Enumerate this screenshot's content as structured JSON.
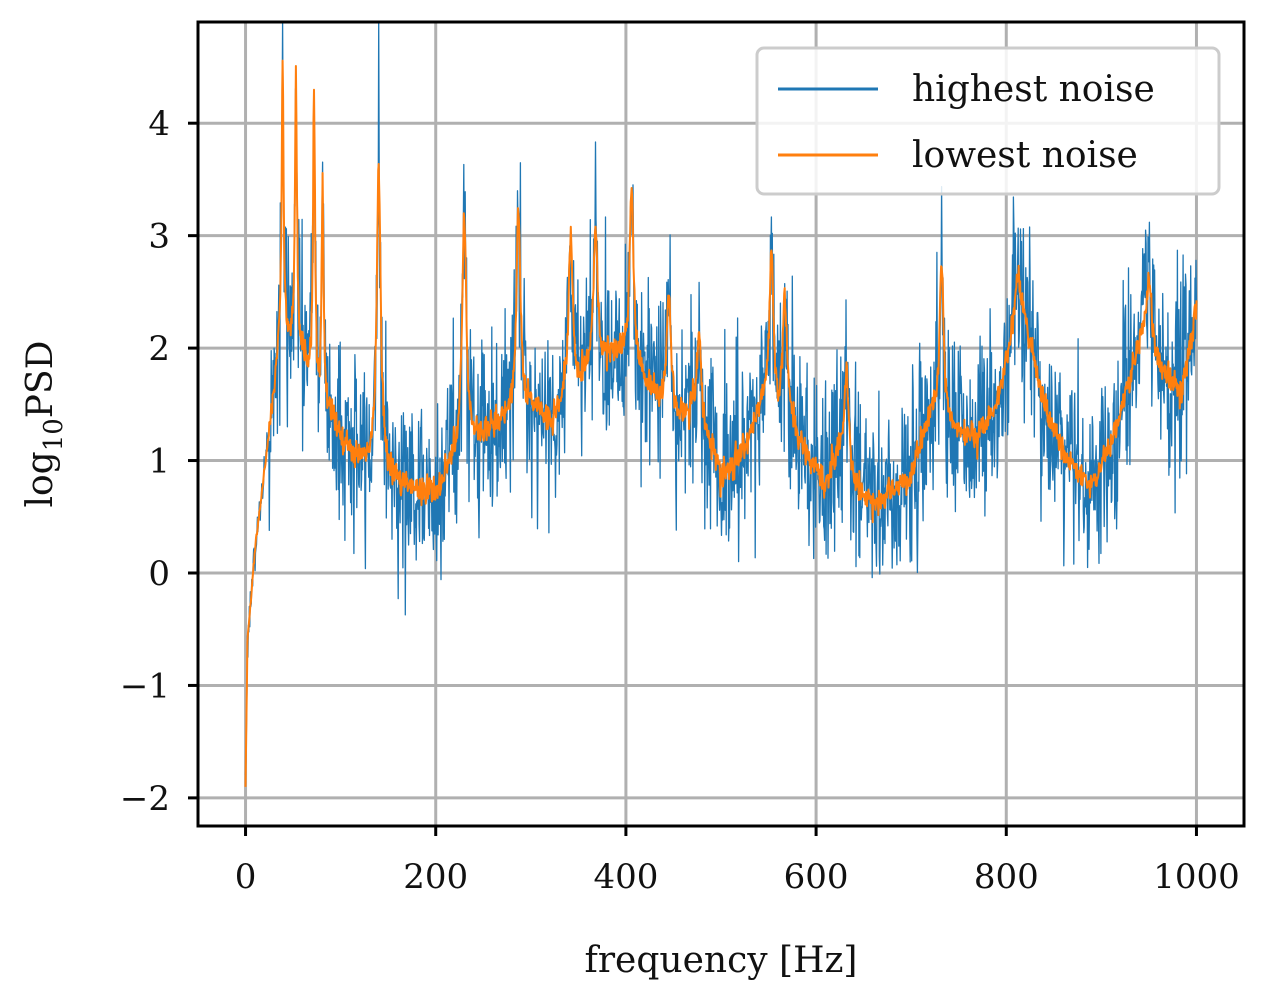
{
  "chart_data": {
    "type": "line",
    "xlabel": "frequency [Hz]",
    "ylabel_base": "log",
    "ylabel_sub": "10",
    "ylabel_rest": "PSD",
    "xlim": [
      -50,
      1050
    ],
    "ylim": [
      -2.25,
      4.9
    ],
    "x_ticks": [
      0,
      200,
      400,
      600,
      800,
      1000
    ],
    "y_ticks": [
      -2,
      -1,
      0,
      1,
      2,
      3,
      4
    ],
    "y_tick_labels": [
      "−2",
      "−1",
      "0",
      "1",
      "2",
      "3",
      "4"
    ],
    "grid": true,
    "legend_position": "top-right",
    "series": [
      {
        "name": "highest noise",
        "color": "#1f77b4",
        "noise": 0.42
      },
      {
        "name": "lowest noise",
        "color": "#ff7f0e",
        "noise": 0.06
      }
    ],
    "baseline": [
      [
        0,
        -1.9
      ],
      [
        2,
        -0.6
      ],
      [
        10,
        0.2
      ],
      [
        20,
        0.9
      ],
      [
        30,
        1.6
      ],
      [
        34,
        1.9
      ],
      [
        40,
        2.1
      ],
      [
        60,
        2.0
      ],
      [
        80,
        1.6
      ],
      [
        100,
        1.2
      ],
      [
        120,
        1.0
      ],
      [
        150,
        0.85
      ],
      [
        180,
        0.75
      ],
      [
        200,
        0.7
      ],
      [
        215,
        1.0
      ],
      [
        250,
        1.25
      ],
      [
        270,
        1.35
      ],
      [
        300,
        1.5
      ],
      [
        320,
        1.35
      ],
      [
        330,
        1.45
      ],
      [
        360,
        1.8
      ],
      [
        390,
        2.0
      ],
      [
        420,
        1.7
      ],
      [
        440,
        1.5
      ],
      [
        455,
        1.4
      ],
      [
        470,
        1.5
      ],
      [
        500,
        0.9
      ],
      [
        520,
        1.0
      ],
      [
        545,
        1.5
      ],
      [
        570,
        1.4
      ],
      [
        590,
        1.05
      ],
      [
        610,
        0.8
      ],
      [
        625,
        1.1
      ],
      [
        640,
        0.75
      ],
      [
        660,
        0.6
      ],
      [
        700,
        0.85
      ],
      [
        720,
        1.4
      ],
      [
        750,
        1.25
      ],
      [
        770,
        1.2
      ],
      [
        790,
        1.5
      ],
      [
        815,
        2.4
      ],
      [
        840,
        1.5
      ],
      [
        860,
        1.05
      ],
      [
        890,
        0.75
      ],
      [
        920,
        1.4
      ],
      [
        945,
        2.2
      ],
      [
        965,
        1.75
      ],
      [
        985,
        1.6
      ],
      [
        1000,
        2.4
      ]
    ],
    "peaks": [
      {
        "f": 39,
        "h": 4.6
      },
      {
        "f": 53,
        "h": 4.45
      },
      {
        "f": 72,
        "h": 4.3
      },
      {
        "f": 81,
        "h": 3.55
      },
      {
        "f": 140,
        "h": 3.6
      },
      {
        "f": 230,
        "h": 3.2
      },
      {
        "f": 287,
        "h": 3.25
      },
      {
        "f": 342,
        "h": 3.0
      },
      {
        "f": 368,
        "h": 3.05
      },
      {
        "f": 406,
        "h": 3.4
      },
      {
        "f": 445,
        "h": 2.5
      },
      {
        "f": 477,
        "h": 2.15
      },
      {
        "f": 553,
        "h": 2.9
      },
      {
        "f": 567,
        "h": 2.5
      },
      {
        "f": 632,
        "h": 1.8
      },
      {
        "f": 732,
        "h": 2.75
      },
      {
        "f": 812,
        "h": 2.65
      },
      {
        "f": 950,
        "h": 2.6
      }
    ]
  }
}
